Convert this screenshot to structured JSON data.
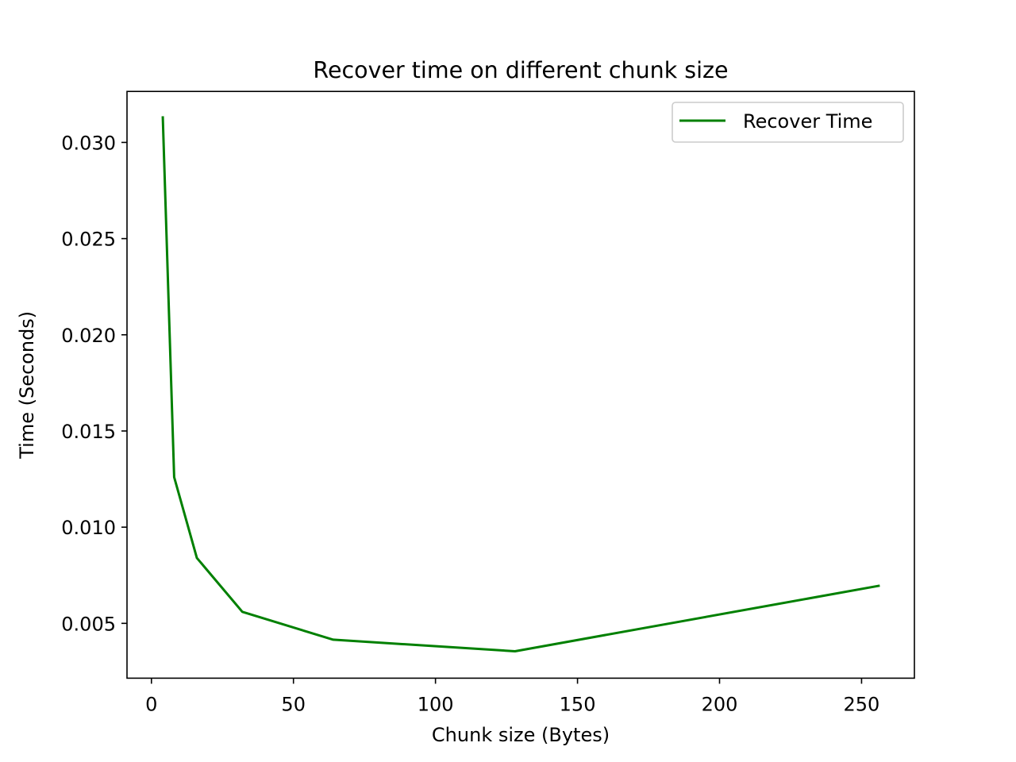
{
  "chart_data": {
    "type": "line",
    "title": "Recover time on different chunk size",
    "xlabel": "Chunk size (Bytes)",
    "ylabel": "Time (Seconds)",
    "xlim": [
      -8.6,
      268.6
    ],
    "ylim": [
      0.00215,
      0.03265
    ],
    "xticks": [
      0,
      50,
      100,
      150,
      200,
      250
    ],
    "yticks": [
      0.005,
      0.01,
      0.015,
      0.02,
      0.025,
      0.03
    ],
    "xtick_labels": [
      "0",
      "50",
      "100",
      "150",
      "200",
      "250"
    ],
    "ytick_labels": [
      "0.005",
      "0.010",
      "0.015",
      "0.020",
      "0.025",
      "0.030"
    ],
    "grid": false,
    "legend_position": "upper right",
    "series": [
      {
        "name": "Recover Time",
        "color": "#008000",
        "x": [
          4,
          8,
          16,
          32,
          64,
          128,
          256
        ],
        "y": [
          0.0313,
          0.0126,
          0.0084,
          0.0056,
          0.00415,
          0.00355,
          0.00695
        ]
      }
    ]
  }
}
